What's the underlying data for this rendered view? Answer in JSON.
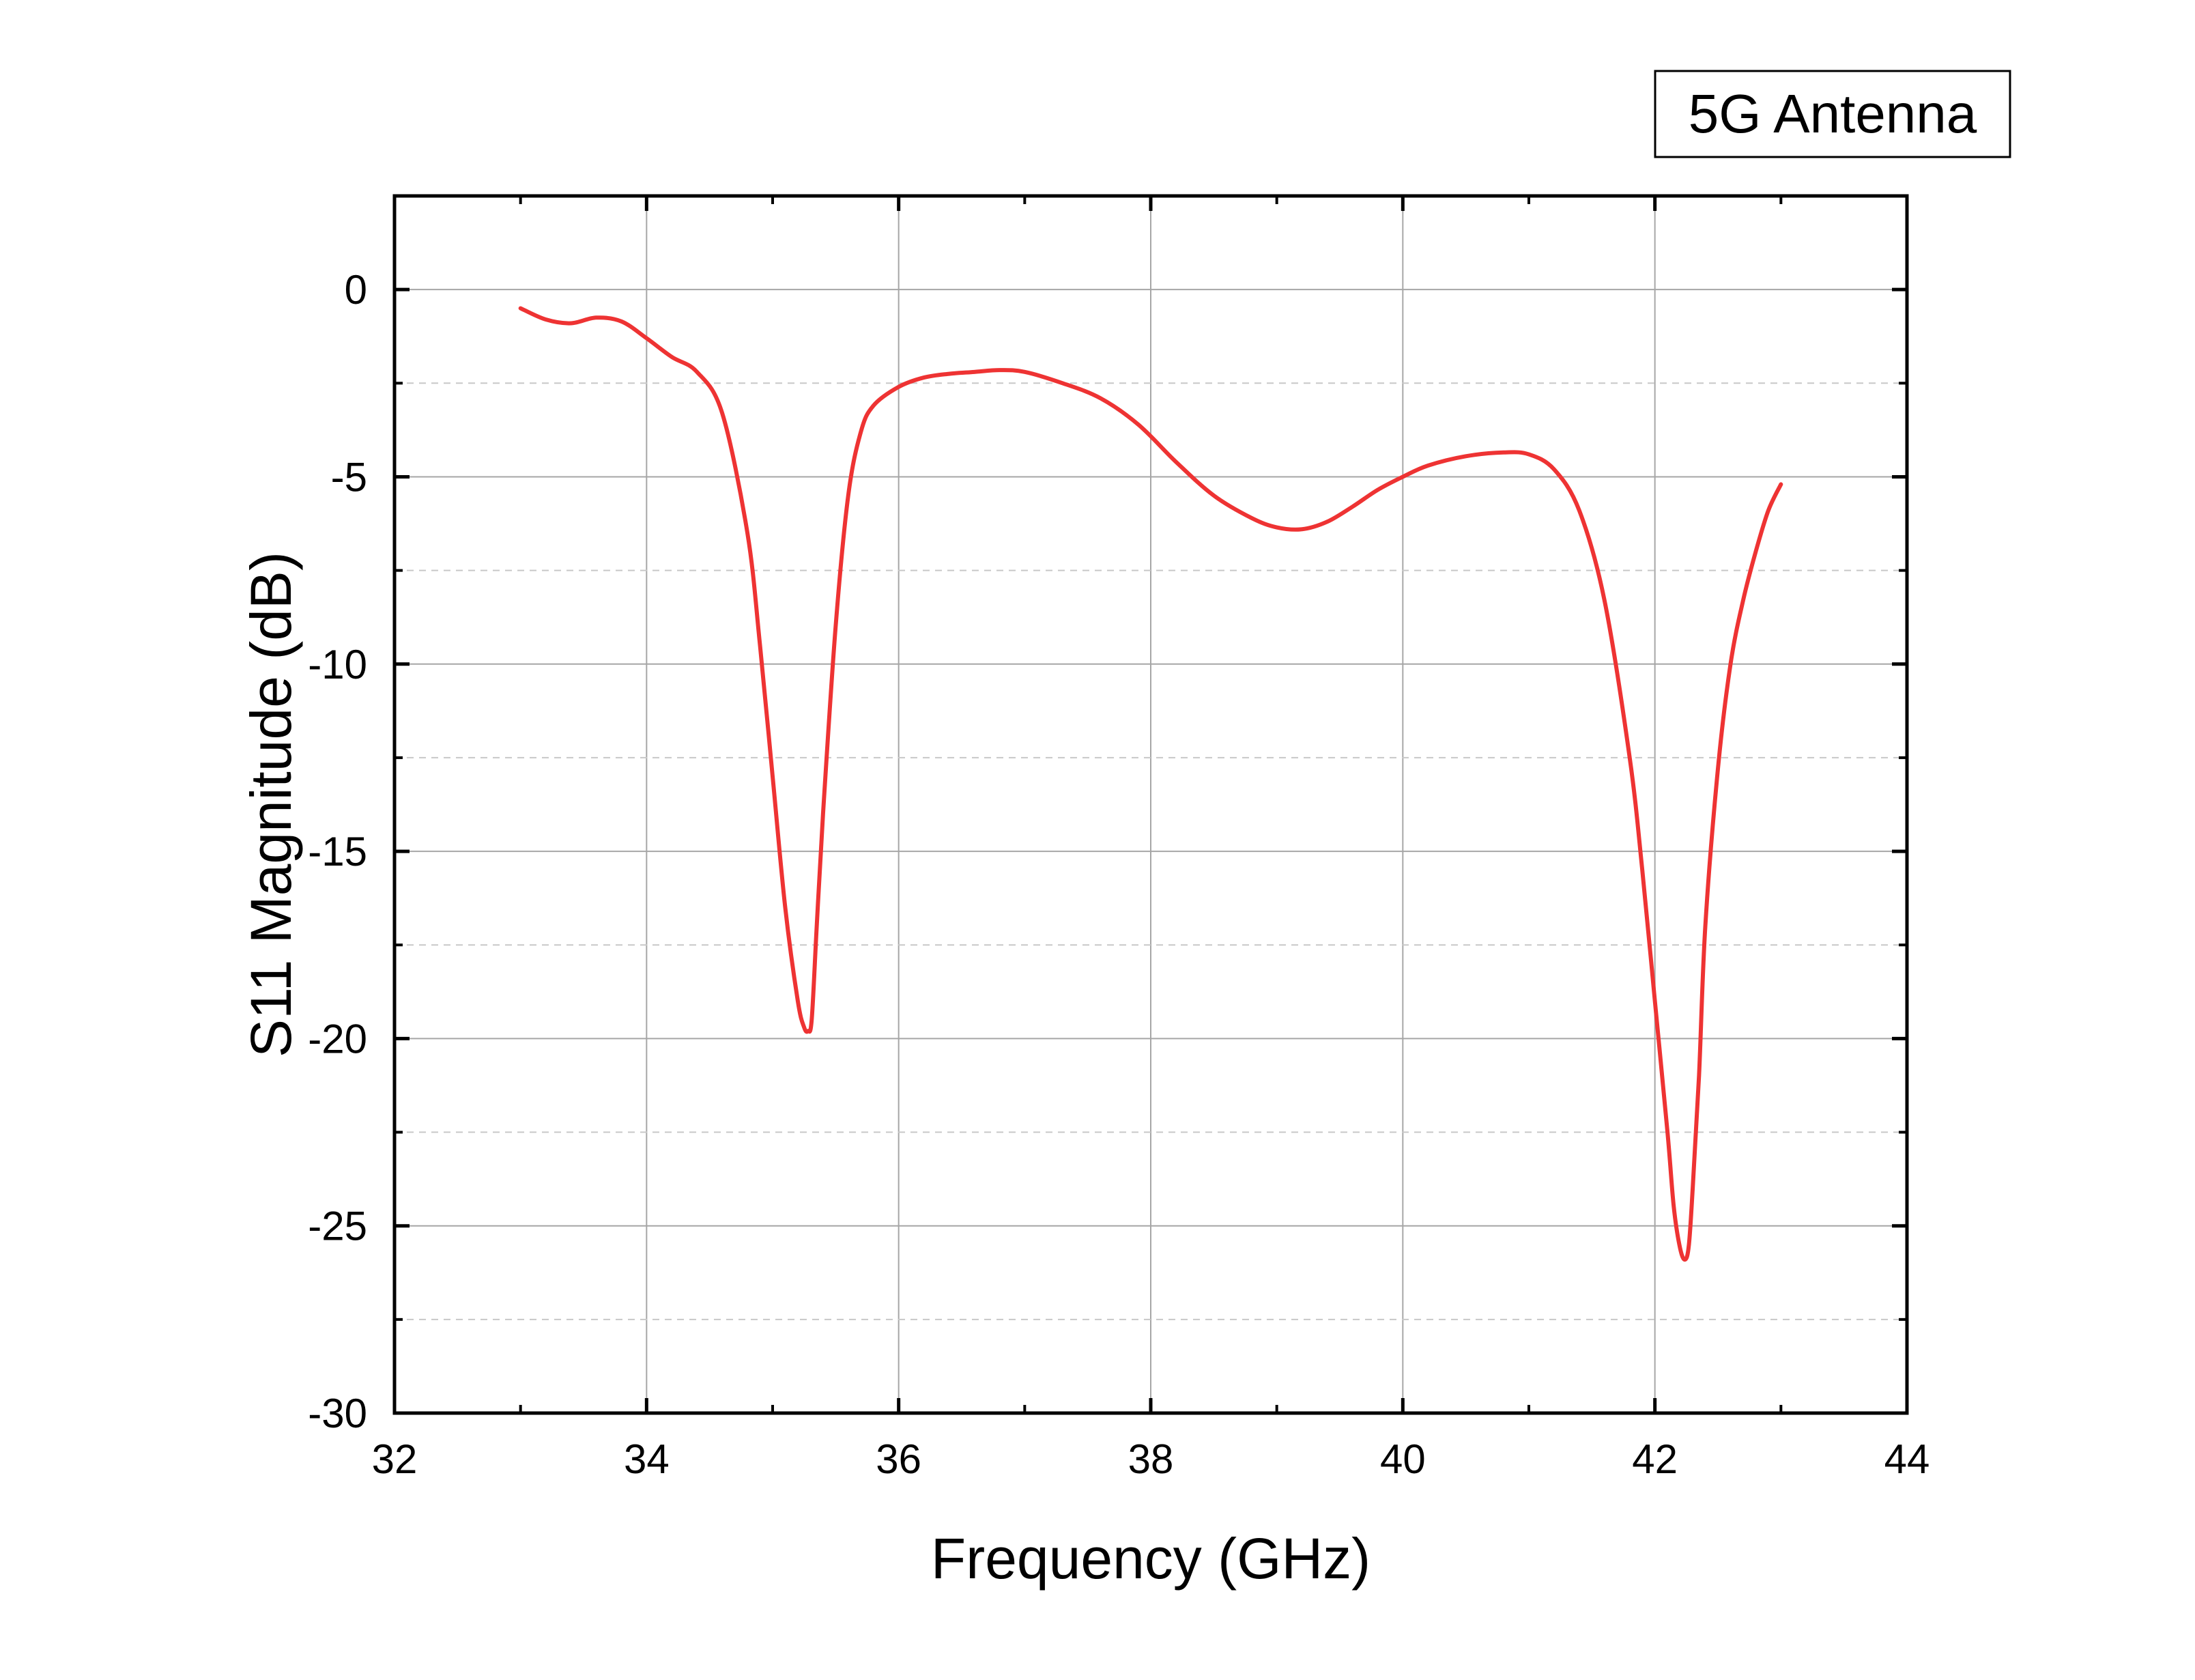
{
  "chart_data": {
    "type": "line",
    "xlabel": "Frequency (GHz)",
    "ylabel": "S11 Magnitude (dB)",
    "xlim": [
      32,
      44
    ],
    "ylim": [
      -30,
      2.5
    ],
    "xticks": [
      32,
      34,
      36,
      38,
      40,
      42,
      44
    ],
    "yticks": [
      0,
      -5,
      -10,
      -15,
      -20,
      -25,
      -30
    ],
    "xtick_labels": [
      "32",
      "34",
      "36",
      "38",
      "40",
      "42",
      "44"
    ],
    "ytick_labels": [
      "0",
      "-5",
      "-10",
      "-15",
      "-20",
      "-25",
      "-30"
    ],
    "y_minor_step": 2.5,
    "grid": true,
    "legend_position": "top-right",
    "legend_box_text": "5G Antenna",
    "series": [
      {
        "color": "#ee3333",
        "x": [
          33.0,
          33.2,
          33.4,
          33.6,
          33.8,
          34.0,
          34.2,
          34.4,
          34.6,
          34.8,
          34.9,
          35.0,
          35.1,
          35.2,
          35.25,
          35.28,
          35.31,
          35.35,
          35.4,
          35.5,
          35.6,
          35.7,
          35.8,
          36.0,
          36.2,
          36.4,
          36.6,
          36.8,
          37.0,
          37.3,
          37.6,
          37.9,
          38.2,
          38.5,
          38.8,
          39.0,
          39.2,
          39.4,
          39.6,
          39.8,
          40.0,
          40.2,
          40.5,
          40.8,
          41.0,
          41.2,
          41.4,
          41.6,
          41.8,
          41.9,
          42.0,
          42.1,
          42.15,
          42.2,
          42.24,
          42.27,
          42.3,
          42.35,
          42.4,
          42.5,
          42.6,
          42.7,
          42.8,
          42.9,
          43.0
        ],
        "y": [
          -0.5,
          -0.8,
          -0.9,
          -0.75,
          -0.85,
          -1.3,
          -1.8,
          -2.2,
          -3.3,
          -6.5,
          -9.5,
          -13.0,
          -16.5,
          -19.0,
          -19.7,
          -19.8,
          -19.5,
          -17.0,
          -14.0,
          -9.0,
          -5.5,
          -3.8,
          -3.1,
          -2.6,
          -2.35,
          -2.25,
          -2.2,
          -2.15,
          -2.2,
          -2.5,
          -2.9,
          -3.6,
          -4.6,
          -5.5,
          -6.1,
          -6.35,
          -6.4,
          -6.2,
          -5.8,
          -5.35,
          -5.0,
          -4.7,
          -4.45,
          -4.35,
          -4.4,
          -4.8,
          -5.9,
          -8.3,
          -12.5,
          -15.5,
          -19.0,
          -22.5,
          -24.5,
          -25.6,
          -25.9,
          -25.5,
          -24.0,
          -21.0,
          -17.0,
          -12.8,
          -10.0,
          -8.3,
          -7.0,
          -5.9,
          -5.2
        ]
      }
    ]
  }
}
